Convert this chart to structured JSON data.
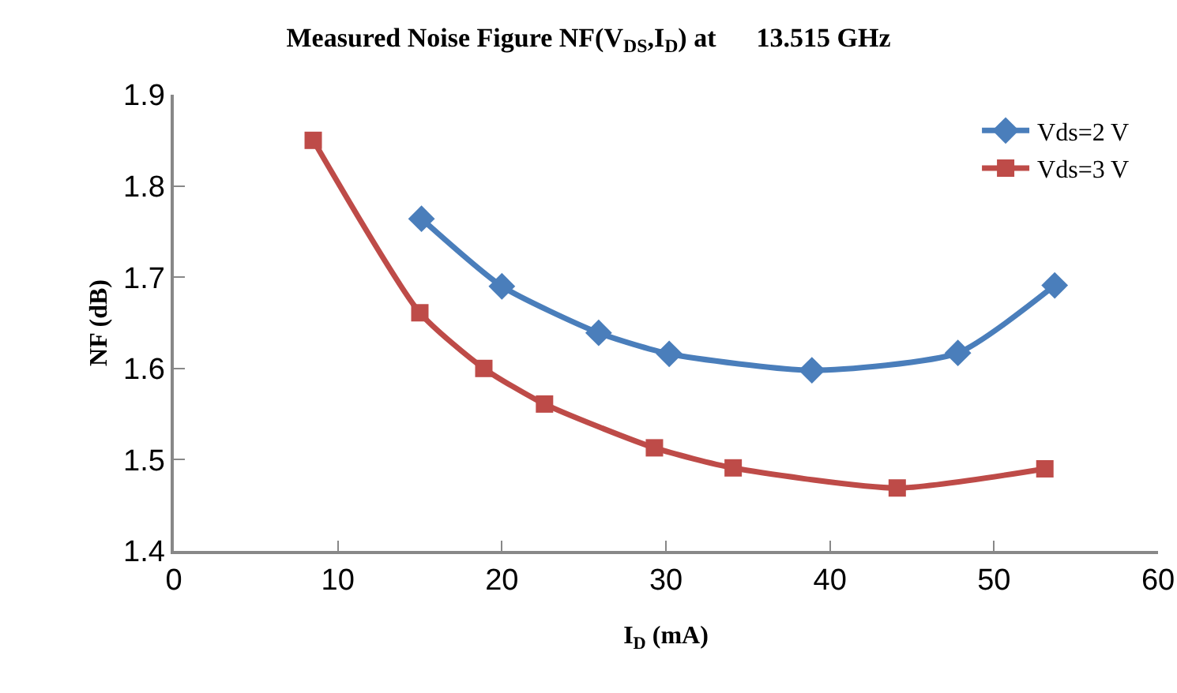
{
  "chart_data": {
    "type": "line",
    "title": "Measured Noise Figure NF(V$_{DS}$,I$_{D}$) at      13.515 GHz",
    "xlabel": "I$_{D}$ (mA)",
    "ylabel": "NF (dB)",
    "xlim": [
      0,
      60
    ],
    "xticks": [
      0,
      10,
      20,
      30,
      40,
      50,
      60
    ],
    "ylim": [
      1.4,
      1.9
    ],
    "yticks": [
      {
        "value": 1.4,
        "label": "1.4"
      },
      {
        "value": 1.5,
        "label": "1.5"
      },
      {
        "value": 1.6,
        "label": "1.6"
      },
      {
        "value": 1.7,
        "label": "1.7"
      },
      {
        "value": 1.8,
        "label": "1.8"
      },
      {
        "value": 1.9,
        "label": "1.9"
      }
    ],
    "grid": false,
    "legend": "top right",
    "series": [
      {
        "name": "Vds=2 V",
        "color": "#4a7ebb",
        "marker": "diamond",
        "x": [
          15.1,
          20.0,
          25.9,
          30.2,
          38.9,
          47.8,
          53.7
        ],
        "values": [
          1.764,
          1.69,
          1.639,
          1.616,
          1.598,
          1.617,
          1.691
        ]
      },
      {
        "name": "Vds=3 V",
        "color": "#be4b48",
        "marker": "square",
        "x": [
          8.5,
          15.0,
          18.9,
          22.6,
          29.3,
          34.1,
          44.1,
          53.1
        ],
        "values": [
          1.85,
          1.661,
          1.6,
          1.561,
          1.513,
          1.491,
          1.469,
          1.49
        ]
      }
    ]
  }
}
